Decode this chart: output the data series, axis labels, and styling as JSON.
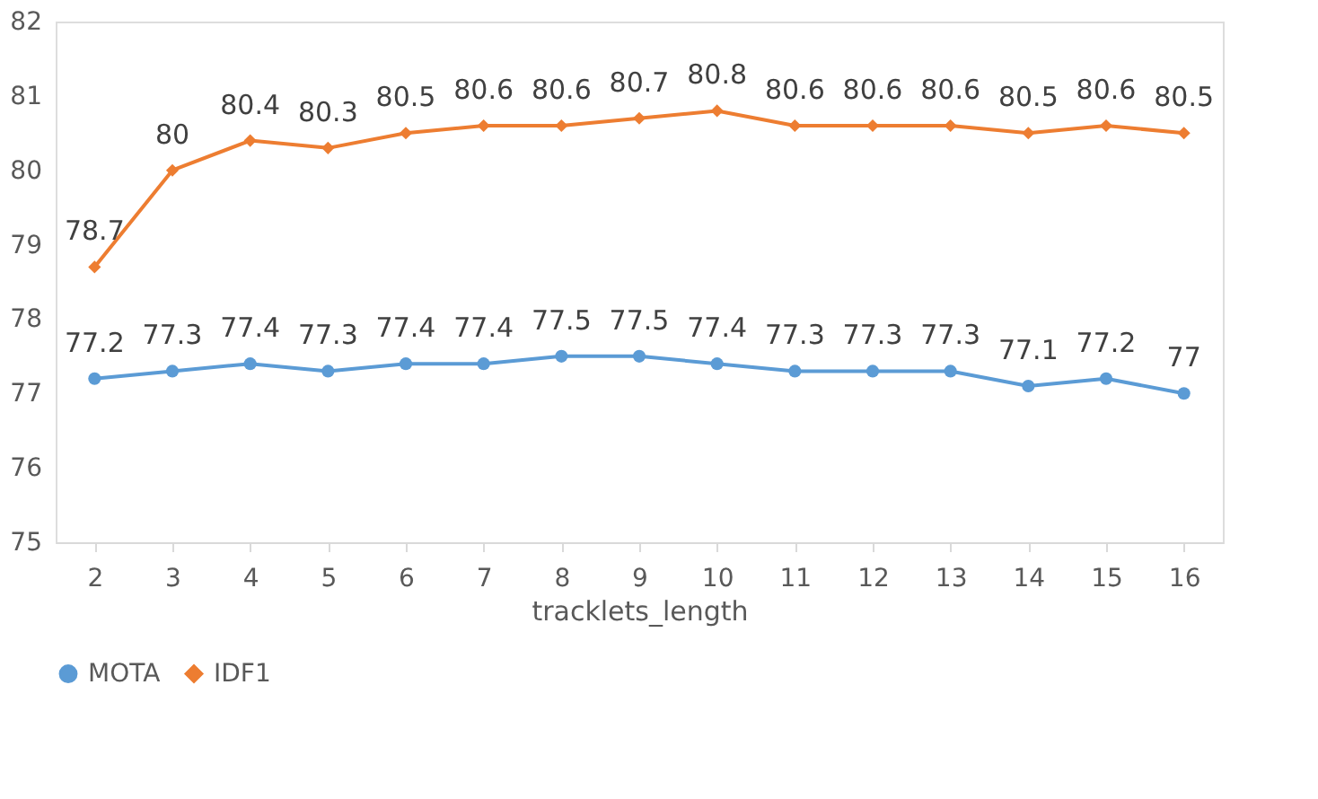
{
  "chart_data": {
    "type": "line",
    "xlabel": "tracklets_length",
    "categories": [
      "2",
      "3",
      "4",
      "5",
      "6",
      "7",
      "8",
      "9",
      "10",
      "11",
      "12",
      "13",
      "14",
      "15",
      "16"
    ],
    "series": [
      {
        "name": "MOTA",
        "color": "#5b9bd5",
        "marker": "circle",
        "values": [
          77.2,
          77.3,
          77.4,
          77.3,
          77.4,
          77.4,
          77.5,
          77.5,
          77.4,
          77.3,
          77.3,
          77.3,
          77.1,
          77.2,
          77
        ]
      },
      {
        "name": "IDF1",
        "color": "#ed7d31",
        "marker": "diamond",
        "values": [
          78.7,
          80,
          80.4,
          80.3,
          80.5,
          80.6,
          80.6,
          80.7,
          80.8,
          80.6,
          80.6,
          80.6,
          80.5,
          80.6,
          80.5
        ]
      }
    ],
    "ylim": [
      75,
      82
    ],
    "yticks": [
      75,
      76,
      77,
      78,
      79,
      80,
      81,
      82
    ],
    "grid": false,
    "legend": "bottom",
    "data_labels": true,
    "line_style": "solid"
  }
}
